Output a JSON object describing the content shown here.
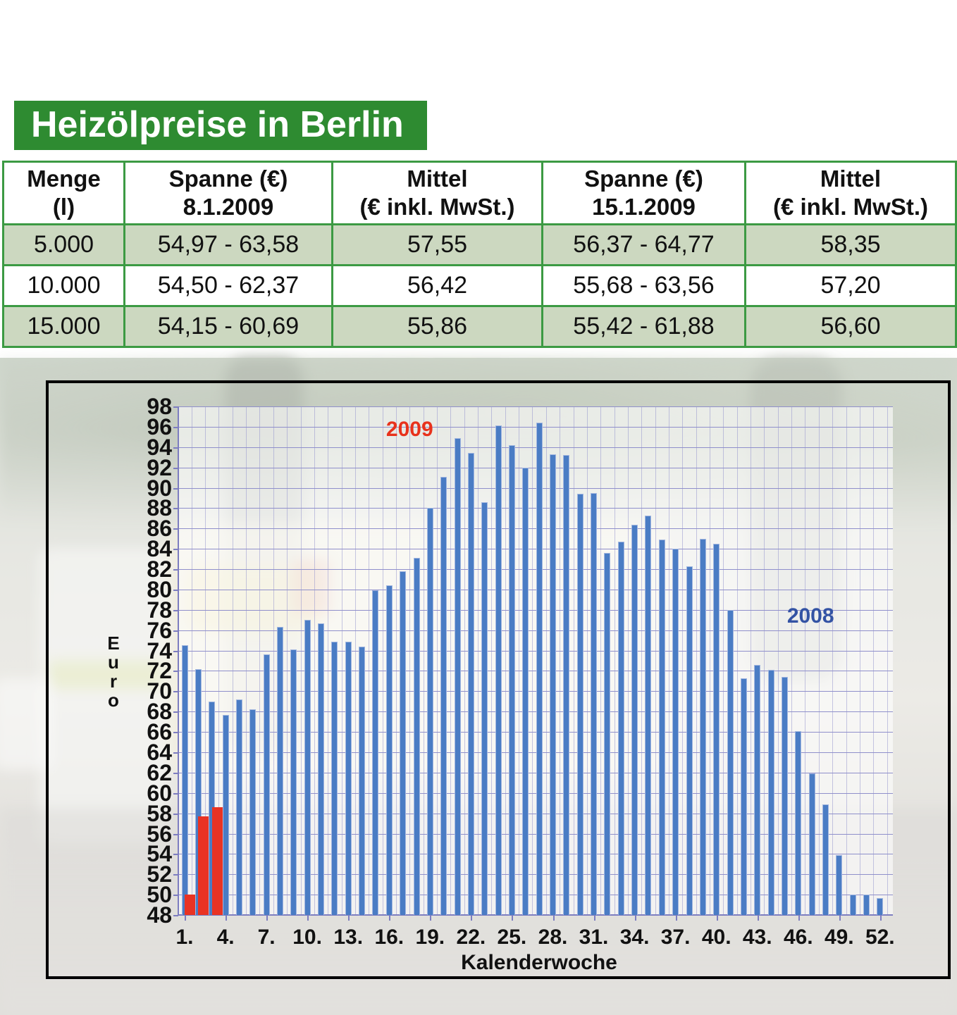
{
  "title": "Heizölpreise in Berlin",
  "table": {
    "headers": [
      {
        "lines": [
          "Menge",
          "(l)"
        ]
      },
      {
        "lines": [
          "Spanne (€)",
          "8.1.2009"
        ]
      },
      {
        "lines": [
          "Mittel",
          "(€ inkl. MwSt.)"
        ]
      },
      {
        "lines": [
          "Spanne (€)",
          "15.1.2009"
        ]
      },
      {
        "lines": [
          "Mittel",
          "(€ inkl. MwSt.)"
        ]
      }
    ],
    "rows": [
      {
        "cells": [
          "5.000",
          "54,97 - 63,58",
          "57,55",
          "56,37 - 64,77",
          "58,35"
        ],
        "shaded": true
      },
      {
        "cells": [
          "10.000",
          "54,50 - 62,37",
          "56,42",
          "55,68 - 63,56",
          "57,20"
        ],
        "shaded": false
      },
      {
        "cells": [
          "15.000",
          "54,15 - 60,69",
          "55,86",
          "55,42 - 61,88",
          "56,60"
        ],
        "shaded": true
      }
    ]
  },
  "chart_data": {
    "type": "bar",
    "title": "",
    "xlabel": "Kalenderwoche",
    "ylabel": "Euro",
    "ylim": [
      48,
      98
    ],
    "ytick_step": 2,
    "grid": true,
    "xtick_weeks": [
      1,
      4,
      7,
      10,
      13,
      16,
      19,
      22,
      25,
      28,
      31,
      34,
      37,
      40,
      43,
      46,
      49,
      52
    ],
    "xtick_labels": [
      "1.",
      "4.",
      "7.",
      "10.",
      "13.",
      "16.",
      "19.",
      "22.",
      "25.",
      "28.",
      "31.",
      "34.",
      "37.",
      "40.",
      "43.",
      "46.",
      "49.",
      "52."
    ],
    "series": [
      {
        "name": "2008",
        "color": "#4a7cc4",
        "edge_color": "#a3b7e0",
        "start_week": 1,
        "values": [
          74.5,
          72.2,
          69.0,
          67.7,
          69.2,
          68.2,
          73.6,
          76.3,
          74.1,
          77.0,
          76.7,
          74.9,
          74.9,
          74.4,
          79.9,
          80.4,
          81.8,
          83.1,
          88.0,
          91.1,
          94.9,
          93.4,
          88.6,
          96.1,
          94.2,
          92.0,
          96.4,
          93.3,
          93.2,
          89.4,
          89.5,
          83.6,
          84.7,
          86.4,
          87.3,
          84.9,
          84.0,
          82.3,
          85.0,
          84.5,
          78.0,
          71.3,
          72.6,
          72.1,
          71.4,
          66.1,
          61.9,
          58.9,
          53.9,
          50.0,
          50.0,
          49.7
        ]
      },
      {
        "name": "2009",
        "color": "#e93323",
        "start_week": 1,
        "values": [
          50.0,
          57.7,
          58.6
        ]
      }
    ],
    "annotations": [
      {
        "text": "2009",
        "color": "#e8321c",
        "week": 17.5,
        "value": 95.7
      },
      {
        "text": "2008",
        "color": "#3353a4",
        "week": 46.9,
        "value": 77.4
      }
    ],
    "legend_position": "inline-annotations"
  }
}
